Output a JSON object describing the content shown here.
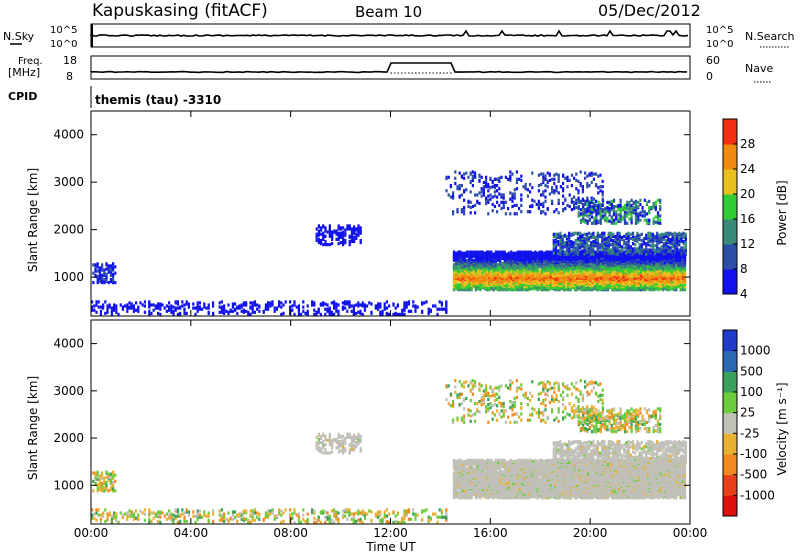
{
  "header": {
    "station": "Kapuskasing (fitACF)",
    "beam": "Beam 10",
    "date": "05/Dec/2012"
  },
  "top_panels": {
    "nsky_label": "N.Sky",
    "nsky_ticks": [
      "10^5",
      "10^0"
    ],
    "nsearch_label": "N.Search",
    "freq_label_1": "Freq.",
    "freq_label_2": "[MHz]",
    "freq_ticks": [
      "18",
      "8"
    ],
    "nave_ticks": [
      "60",
      "0"
    ],
    "nave_label": "Nave",
    "cpid_label": "CPID",
    "cpid_text": "themis (tau) -3310"
  },
  "x_axis": {
    "label": "Time UT",
    "ticks": [
      "00:00",
      "04:00",
      "08:00",
      "12:00",
      "16:00",
      "20:00",
      "00:00"
    ]
  },
  "power_panel": {
    "ylabel": "Slant Range [km]",
    "yticks": [
      "4000",
      "3000",
      "2000",
      "1000"
    ],
    "colorbar_label": "Power [dB]",
    "colorbar_ticks": [
      "28",
      "24",
      "20",
      "16",
      "12",
      "8",
      "4"
    ],
    "colors": [
      "#1111ee",
      "#2d4fa8",
      "#3a8a78",
      "#33cc33",
      "#e8c020",
      "#f08a10",
      "#f03010"
    ]
  },
  "velocity_panel": {
    "ylabel": "Slant Range [km]",
    "yticks": [
      "4000",
      "3000",
      "2000",
      "1000"
    ],
    "colorbar_label": "Velocity [m s⁻¹]",
    "colorbar_ticks": [
      "1000",
      "500",
      "100",
      "25",
      "-25",
      "-100",
      "-500",
      "-1000"
    ],
    "colors": [
      "#1e3cc8",
      "#2d6ab4",
      "#3aa05a",
      "#6ccc3c",
      "#c0c0b8",
      "#e8b030",
      "#f08a20",
      "#e84018",
      "#dd1010"
    ]
  },
  "chart_data": {
    "type": "heatmap",
    "x_range_hours": [
      0,
      24
    ],
    "y_range_km": [
      180,
      4500
    ],
    "regions": [
      {
        "t0": 0.05,
        "t1": 1.0,
        "r0": 850,
        "r1": 1250,
        "power": [
          4,
          10
        ],
        "vel": "mixed",
        "density": 0.35
      },
      {
        "t0": 0.0,
        "t1": 14.2,
        "r0": 180,
        "r1": 450,
        "power": [
          4,
          8
        ],
        "vel": "mixed",
        "density": 0.22
      },
      {
        "t0": 9.0,
        "t1": 10.8,
        "r0": 1650,
        "r1": 2050,
        "power": [
          4,
          8
        ],
        "vel": "low",
        "density": 0.3
      },
      {
        "t0": 14.5,
        "t1": 23.8,
        "r0": 700,
        "r1": 1500,
        "power": [
          8,
          28
        ],
        "vel": "low",
        "density": 0.85
      },
      {
        "t0": 18.5,
        "t1": 23.8,
        "r0": 1450,
        "r1": 1900,
        "power": [
          4,
          16
        ],
        "vel": "low",
        "density": 0.5
      },
      {
        "t0": 19.5,
        "t1": 22.8,
        "r0": 2100,
        "r1": 2600,
        "power": [
          4,
          20
        ],
        "vel": "mixed",
        "density": 0.35
      },
      {
        "t0": 14.2,
        "t1": 20.5,
        "r0": 2300,
        "r1": 3200,
        "power": [
          4,
          12
        ],
        "vel": "mixed",
        "density": 0.12
      }
    ]
  }
}
